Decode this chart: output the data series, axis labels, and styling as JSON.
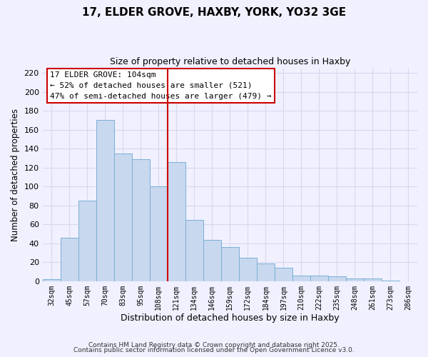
{
  "title": "17, ELDER GROVE, HAXBY, YORK, YO32 3GE",
  "subtitle": "Size of property relative to detached houses in Haxby",
  "xlabel": "Distribution of detached houses by size in Haxby",
  "ylabel": "Number of detached properties",
  "bar_labels": [
    "32sqm",
    "45sqm",
    "57sqm",
    "70sqm",
    "83sqm",
    "95sqm",
    "108sqm",
    "121sqm",
    "134sqm",
    "146sqm",
    "159sqm",
    "172sqm",
    "184sqm",
    "197sqm",
    "210sqm",
    "222sqm",
    "235sqm",
    "248sqm",
    "261sqm",
    "273sqm",
    "286sqm"
  ],
  "bar_values": [
    2,
    46,
    85,
    170,
    135,
    129,
    100,
    126,
    65,
    44,
    36,
    25,
    19,
    14,
    6,
    6,
    5,
    3,
    3,
    1,
    0
  ],
  "bar_color": "#c8d8ef",
  "bar_edge_color": "#7bafd4",
  "vline_x_idx": 6,
  "vline_color": "#cc0000",
  "annotation_title": "17 ELDER GROVE: 104sqm",
  "annotation_line1": "← 52% of detached houses are smaller (521)",
  "annotation_line2": "47% of semi-detached houses are larger (479) →",
  "ylim": [
    0,
    225
  ],
  "yticks": [
    0,
    20,
    40,
    60,
    80,
    100,
    120,
    140,
    160,
    180,
    200,
    220
  ],
  "footer1": "Contains HM Land Registry data © Crown copyright and database right 2025.",
  "footer2": "Contains public sector information licensed under the Open Government Licence v3.0.",
  "background_color": "#f0f0ff",
  "grid_color": "#d8d8ee"
}
